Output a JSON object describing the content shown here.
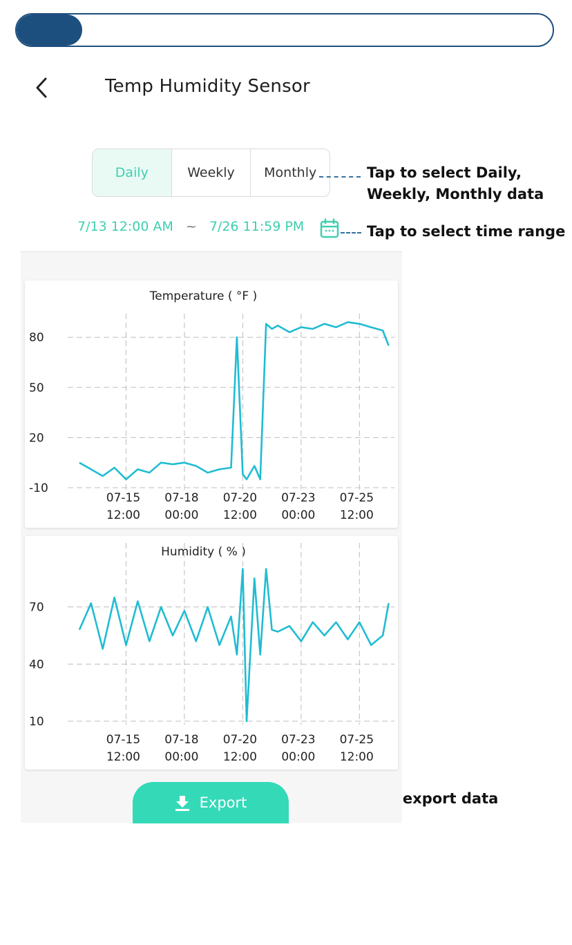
{
  "progress": {
    "fraction": 0.122
  },
  "header": {
    "title": "Temp Humidity Sensor"
  },
  "tabs": [
    {
      "label": "Daily",
      "active": true
    },
    {
      "label": "Weekly",
      "active": false
    },
    {
      "label": "Monthly",
      "active": false
    }
  ],
  "date_range": {
    "start": "7/13 12:00 AM",
    "separator": "~",
    "end": "7/26 11:59 PM"
  },
  "annotations": {
    "tabs_line1": "Tap to select Daily,",
    "tabs_line2": "Weekly, Monthly data",
    "time_range": "Tap to select time range",
    "export": "Tap to export data"
  },
  "export_button": {
    "label": "Export"
  },
  "colors": {
    "accent": "#34d9b8",
    "series": "#1fbcd2",
    "progress": "#1d4f7e",
    "annotation_dash": "#35709e"
  },
  "chart_data": [
    {
      "type": "line",
      "title": "Temperature ( °F )",
      "xlabel": "",
      "ylabel": "",
      "x_domain": [
        "07-13 00:00",
        "07-27 00:00"
      ],
      "x_ticks": [
        {
          "label": [
            "07-15",
            "12:00"
          ],
          "at": "07-15 12:00"
        },
        {
          "label": [
            "07-18",
            "00:00"
          ],
          "at": "07-18 00:00"
        },
        {
          "label": [
            "07-20",
            "12:00"
          ],
          "at": "07-20 12:00"
        },
        {
          "label": [
            "07-23",
            "00:00"
          ],
          "at": "07-23 00:00"
        },
        {
          "label": [
            "07-25",
            "12:00"
          ],
          "at": "07-25 12:00"
        }
      ],
      "y_ticks": [
        "80",
        "50",
        "20",
        "-10"
      ],
      "ylim": [
        -10,
        90
      ],
      "grid": true,
      "series": [
        {
          "x": [
            "07-13 12:00",
            "07-14 00:00",
            "07-14 12:00",
            "07-15 00:00",
            "07-15 12:00",
            "07-16 00:00",
            "07-16 12:00",
            "07-17 00:00",
            "07-17 12:00",
            "07-18 00:00",
            "07-18 12:00",
            "07-19 00:00",
            "07-19 12:00",
            "07-20 00:00",
            "07-20 06:00",
            "07-20 12:00",
            "07-20 16:00",
            "07-21 00:00",
            "07-21 06:00",
            "07-21 12:00",
            "07-21 18:00",
            "07-22 00:00",
            "07-22 12:00",
            "07-23 00:00",
            "07-23 12:00",
            "07-24 00:00",
            "07-24 12:00",
            "07-25 00:00",
            "07-25 12:00",
            "07-26 00:00",
            "07-26 12:00",
            "07-26 18:00"
          ],
          "values": [
            5,
            1,
            -3,
            2,
            -5,
            1,
            -1,
            5,
            4,
            5,
            3,
            -1,
            1,
            2,
            80,
            -2,
            -5,
            3,
            -5,
            88,
            85,
            87,
            83,
            86,
            85,
            88,
            86,
            89,
            88,
            86,
            84,
            75
          ]
        }
      ]
    },
    {
      "type": "line",
      "title": "Humidity ( % )",
      "xlabel": "",
      "ylabel": "",
      "x_domain": [
        "07-13 00:00",
        "07-27 00:00"
      ],
      "x_ticks": [
        {
          "label": [
            "07-15",
            "12:00"
          ],
          "at": "07-15 12:00"
        },
        {
          "label": [
            "07-18",
            "00:00"
          ],
          "at": "07-18 00:00"
        },
        {
          "label": [
            "07-20",
            "12:00"
          ],
          "at": "07-20 12:00"
        },
        {
          "label": [
            "07-23",
            "00:00"
          ],
          "at": "07-23 00:00"
        },
        {
          "label": [
            "07-25",
            "12:00"
          ],
          "at": "07-25 12:00"
        }
      ],
      "y_ticks": [
        "70",
        "40",
        "10"
      ],
      "ylim": [
        10,
        100
      ],
      "grid": true,
      "series": [
        {
          "x": [
            "07-13 12:00",
            "07-14 00:00",
            "07-14 12:00",
            "07-15 00:00",
            "07-15 12:00",
            "07-16 00:00",
            "07-16 12:00",
            "07-17 00:00",
            "07-17 12:00",
            "07-18 00:00",
            "07-18 12:00",
            "07-19 00:00",
            "07-19 12:00",
            "07-20 00:00",
            "07-20 06:00",
            "07-20 12:00",
            "07-20 16:00",
            "07-21 00:00",
            "07-21 06:00",
            "07-21 12:00",
            "07-21 18:00",
            "07-22 00:00",
            "07-22 12:00",
            "07-23 00:00",
            "07-23 12:00",
            "07-24 00:00",
            "07-24 12:00",
            "07-25 00:00",
            "07-25 12:00",
            "07-26 00:00",
            "07-26 12:00",
            "07-26 18:00"
          ],
          "values": [
            58,
            72,
            48,
            75,
            50,
            73,
            52,
            70,
            55,
            68,
            52,
            70,
            50,
            65,
            45,
            90,
            10,
            85,
            45,
            90,
            58,
            57,
            60,
            52,
            62,
            55,
            62,
            53,
            62,
            50,
            55,
            72
          ]
        }
      ]
    }
  ]
}
